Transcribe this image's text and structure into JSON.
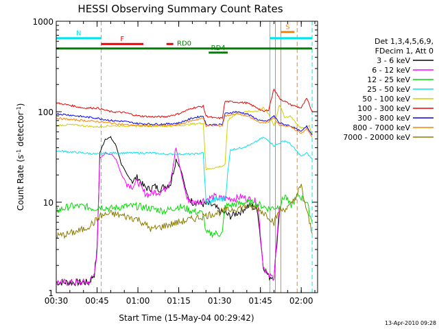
{
  "chart_data": {
    "type": "line",
    "title": "HESSI Observing Summary Count Rates",
    "xlabel": "Start Time (15-May-04 00:29:42)",
    "ylabel_prefix": "Count Rate (s",
    "ylabel_sup1": "-1",
    "ylabel_mid": " detector",
    "ylabel_sup2": "-1",
    "ylabel_suffix": ")",
    "x_unit": "minutes after 00:30 UT",
    "xlim": [
      0,
      96
    ],
    "ylim": [
      1,
      1000
    ],
    "y_scale": "log",
    "x_ticks": [
      {
        "t": 0,
        "label": "00:30"
      },
      {
        "t": 15,
        "label": "00:45"
      },
      {
        "t": 30,
        "label": "01:00"
      },
      {
        "t": 45,
        "label": "01:15"
      },
      {
        "t": 60,
        "label": "01:30"
      },
      {
        "t": 75,
        "label": "01:45"
      },
      {
        "t": 90,
        "label": "02:00"
      }
    ],
    "y_ticks": [
      {
        "v": 1,
        "label": "1"
      },
      {
        "v": 10,
        "label": "10"
      },
      {
        "v": 100,
        "label": "100"
      },
      {
        "v": 1000,
        "label": "1000"
      }
    ],
    "legend": {
      "header1": "Det 1,3,4,5,6,9,",
      "header2": "FDecim 1, Att 0",
      "placement": "right"
    },
    "series": [
      {
        "name": "3 - 6 keV",
        "color": "#000000",
        "points": [
          [
            0,
            1.3
          ],
          [
            12,
            1.3
          ],
          [
            14,
            1.6
          ],
          [
            15,
            3
          ],
          [
            16,
            35
          ],
          [
            18,
            50
          ],
          [
            20,
            52
          ],
          [
            22,
            42
          ],
          [
            24,
            26
          ],
          [
            26,
            20
          ],
          [
            28,
            17
          ],
          [
            30,
            19
          ],
          [
            32,
            15
          ],
          [
            34,
            14
          ],
          [
            36,
            15
          ],
          [
            38,
            14
          ],
          [
            40,
            15
          ],
          [
            42,
            16
          ],
          [
            44,
            30
          ],
          [
            46,
            22
          ],
          [
            48,
            12
          ],
          [
            50,
            10
          ],
          [
            52,
            10
          ],
          [
            54,
            9.5
          ],
          [
            56,
            9.5
          ],
          [
            58,
            9
          ],
          [
            60,
            8
          ],
          [
            62,
            7.5
          ],
          [
            64,
            7
          ],
          [
            66,
            7.5
          ],
          [
            68,
            8
          ],
          [
            70,
            9
          ],
          [
            72,
            9
          ],
          [
            74,
            8
          ],
          [
            76,
            2
          ],
          [
            78,
            1.5
          ],
          [
            80,
            1.5
          ],
          [
            82,
            8
          ]
        ]
      },
      {
        "name": "6 - 12 keV",
        "color": "#ff00ff",
        "points": [
          [
            0,
            1.3
          ],
          [
            12,
            1.3
          ],
          [
            14,
            1.6
          ],
          [
            15,
            3
          ],
          [
            16,
            30
          ],
          [
            18,
            35
          ],
          [
            20,
            34
          ],
          [
            22,
            30
          ],
          [
            24,
            20
          ],
          [
            26,
            16
          ],
          [
            28,
            15
          ],
          [
            30,
            17
          ],
          [
            32,
            13
          ],
          [
            34,
            12
          ],
          [
            36,
            13
          ],
          [
            38,
            13
          ],
          [
            40,
            14
          ],
          [
            42,
            18
          ],
          [
            44,
            40
          ],
          [
            46,
            20
          ],
          [
            48,
            11
          ],
          [
            50,
            10
          ],
          [
            52,
            10
          ],
          [
            54,
            10.5
          ],
          [
            56,
            11
          ],
          [
            58,
            11.5
          ],
          [
            60,
            11
          ],
          [
            62,
            11
          ],
          [
            64,
            11
          ],
          [
            66,
            11
          ],
          [
            68,
            11.5
          ],
          [
            70,
            11
          ],
          [
            72,
            10.5
          ],
          [
            74,
            10
          ],
          [
            76,
            2
          ],
          [
            78,
            1.5
          ],
          [
            80,
            1.5
          ],
          [
            82,
            9
          ]
        ]
      },
      {
        "name": "12 - 25 keV",
        "color": "#00dd00",
        "points": [
          [
            0,
            8
          ],
          [
            5,
            9
          ],
          [
            10,
            9
          ],
          [
            14,
            8.5
          ],
          [
            16,
            9
          ],
          [
            20,
            8.5
          ],
          [
            25,
            9
          ],
          [
            30,
            9
          ],
          [
            35,
            8.5
          ],
          [
            40,
            8
          ],
          [
            45,
            9
          ],
          [
            50,
            8
          ],
          [
            54,
            7.5
          ],
          [
            55,
            4.5
          ],
          [
            58,
            4.5
          ],
          [
            61,
            4.5
          ],
          [
            62,
            9
          ],
          [
            66,
            9.5
          ],
          [
            70,
            10
          ],
          [
            74,
            9.5
          ],
          [
            78,
            8.5
          ],
          [
            82,
            9
          ],
          [
            84,
            12
          ],
          [
            86,
            9
          ],
          [
            89,
            12
          ],
          [
            92,
            10
          ],
          [
            94,
            6
          ]
        ]
      },
      {
        "name": "25 - 50 keV",
        "color": "#00e5ee",
        "points": [
          [
            0,
            37
          ],
          [
            5,
            36
          ],
          [
            10,
            35
          ],
          [
            15,
            34
          ],
          [
            20,
            35
          ],
          [
            25,
            35
          ],
          [
            30,
            35
          ],
          [
            35,
            35
          ],
          [
            40,
            34
          ],
          [
            45,
            34
          ],
          [
            50,
            34
          ],
          [
            54,
            35
          ],
          [
            55,
            10
          ],
          [
            58,
            10.5
          ],
          [
            62,
            11
          ],
          [
            64,
            38
          ],
          [
            68,
            40
          ],
          [
            72,
            44
          ],
          [
            76,
            52
          ],
          [
            78,
            48
          ],
          [
            80,
            42
          ],
          [
            84,
            48
          ],
          [
            86,
            44
          ],
          [
            90,
            32
          ],
          [
            92,
            35
          ],
          [
            94,
            30
          ]
        ]
      },
      {
        "name": "50 - 100 keV",
        "color": "#d0d000",
        "points": [
          [
            0,
            70
          ],
          [
            5,
            72
          ],
          [
            10,
            70
          ],
          [
            15,
            68
          ],
          [
            20,
            70
          ],
          [
            25,
            70
          ],
          [
            30,
            70
          ],
          [
            35,
            70
          ],
          [
            40,
            69
          ],
          [
            45,
            70
          ],
          [
            50,
            73
          ],
          [
            54,
            75
          ],
          [
            55,
            23
          ],
          [
            58,
            24
          ],
          [
            61,
            25
          ],
          [
            62,
            26
          ],
          [
            63,
            80
          ],
          [
            66,
            95
          ],
          [
            70,
            100
          ],
          [
            74,
            102
          ],
          [
            76,
            110
          ],
          [
            78,
            95
          ],
          [
            80,
            70
          ],
          [
            82,
            120
          ],
          [
            84,
            85
          ],
          [
            86,
            90
          ],
          [
            90,
            65
          ],
          [
            93,
            70
          ],
          [
            94,
            55
          ]
        ]
      },
      {
        "name": "100 - 300 keV",
        "color": "#ee0000",
        "points": [
          [
            0,
            125
          ],
          [
            5,
            118
          ],
          [
            10,
            110
          ],
          [
            15,
            110
          ],
          [
            20,
            100
          ],
          [
            25,
            98
          ],
          [
            30,
            90
          ],
          [
            35,
            88
          ],
          [
            40,
            88
          ],
          [
            45,
            95
          ],
          [
            50,
            110
          ],
          [
            54,
            115
          ],
          [
            55,
            90
          ],
          [
            58,
            85
          ],
          [
            61,
            85
          ],
          [
            62,
            130
          ],
          [
            66,
            128
          ],
          [
            70,
            125
          ],
          [
            74,
            110
          ],
          [
            76,
            100
          ],
          [
            78,
            105
          ],
          [
            80,
            180
          ],
          [
            82,
            140
          ],
          [
            84,
            130
          ],
          [
            86,
            120
          ],
          [
            90,
            110
          ],
          [
            92,
            140
          ],
          [
            94,
            100
          ]
        ]
      },
      {
        "name": "300 - 800 keV",
        "color": "#0000ee",
        "points": [
          [
            0,
            95
          ],
          [
            5,
            92
          ],
          [
            10,
            88
          ],
          [
            15,
            85
          ],
          [
            20,
            80
          ],
          [
            25,
            78
          ],
          [
            30,
            74
          ],
          [
            35,
            73
          ],
          [
            40,
            73
          ],
          [
            45,
            75
          ],
          [
            50,
            85
          ],
          [
            54,
            90
          ],
          [
            55,
            72
          ],
          [
            58,
            72
          ],
          [
            61,
            72
          ],
          [
            62,
            95
          ],
          [
            66,
            100
          ],
          [
            70,
            95
          ],
          [
            74,
            82
          ],
          [
            76,
            78
          ],
          [
            78,
            80
          ],
          [
            80,
            90
          ],
          [
            82,
            75
          ],
          [
            84,
            72
          ],
          [
            86,
            70
          ],
          [
            90,
            60
          ],
          [
            92,
            70
          ],
          [
            94,
            55
          ]
        ]
      },
      {
        "name": "800 - 7000 keV",
        "color": "#ff8000",
        "points": [
          [
            0,
            85
          ],
          [
            5,
            82
          ],
          [
            10,
            80
          ],
          [
            15,
            78
          ],
          [
            20,
            75
          ],
          [
            25,
            72
          ],
          [
            30,
            70
          ],
          [
            35,
            70
          ],
          [
            40,
            70
          ],
          [
            45,
            72
          ],
          [
            50,
            80
          ],
          [
            54,
            85
          ],
          [
            55,
            70
          ],
          [
            58,
            70
          ],
          [
            61,
            70
          ],
          [
            62,
            90
          ],
          [
            66,
            95
          ],
          [
            70,
            90
          ],
          [
            74,
            78
          ],
          [
            76,
            75
          ],
          [
            78,
            78
          ],
          [
            80,
            85
          ],
          [
            82,
            72
          ],
          [
            84,
            70
          ],
          [
            86,
            68
          ],
          [
            90,
            58
          ],
          [
            92,
            65
          ],
          [
            94,
            52
          ]
        ]
      },
      {
        "name": "7000 - 20000 keV",
        "color": "#8a7a00",
        "points": [
          [
            0,
            4.2
          ],
          [
            5,
            4.5
          ],
          [
            10,
            5
          ],
          [
            14,
            6
          ],
          [
            16,
            7
          ],
          [
            20,
            7.5
          ],
          [
            25,
            7
          ],
          [
            30,
            6.5
          ],
          [
            35,
            5
          ],
          [
            40,
            5.5
          ],
          [
            45,
            6
          ],
          [
            50,
            6.5
          ],
          [
            54,
            7
          ],
          [
            58,
            7.5
          ],
          [
            62,
            8
          ],
          [
            66,
            8.5
          ],
          [
            70,
            9
          ],
          [
            74,
            8.5
          ],
          [
            78,
            7
          ],
          [
            80,
            6
          ],
          [
            82,
            8
          ],
          [
            84,
            8.5
          ],
          [
            86,
            9
          ],
          [
            90,
            15
          ],
          [
            92,
            8
          ],
          [
            94,
            4.5
          ]
        ]
      }
    ],
    "attenuator_markers": [
      {
        "label": "N",
        "color": "#00e5ee",
        "t0": 0,
        "t1": 16.5,
        "level": 650
      },
      {
        "label": "",
        "color": "#00e5ee",
        "t0": 78.5,
        "t1": 94,
        "level": 650
      },
      {
        "label": "F",
        "color": "#ee0000",
        "t0": 16.5,
        "t1": 32,
        "level": 560
      },
      {
        "label": "",
        "color": "#ee0000",
        "t0": 40.5,
        "t1": 43,
        "level": 560
      },
      {
        "label": "S",
        "color": "#ff8000",
        "t0": 82.5,
        "t1": 87.5,
        "level": 760
      },
      {
        "label": "RD0",
        "color": "#008000",
        "t0": 0,
        "t1": 94,
        "level": 500
      },
      {
        "label": "RD4",
        "color": "#008000",
        "t0": 56,
        "t1": 63,
        "level": 450
      }
    ],
    "vertical_lines": [
      {
        "t": 16.5,
        "color": "#00e5ee",
        "style": "dashed"
      },
      {
        "t": 78.5,
        "color": "#00e5ee",
        "style": "solid"
      },
      {
        "t": 80.5,
        "color": "#ff8000",
        "style": "solid"
      },
      {
        "t": 82.5,
        "color": "#ff8000",
        "style": "solid"
      },
      {
        "t": 88.5,
        "color": "#ff8000",
        "style": "dashed"
      },
      {
        "t": 94,
        "color": "#00e5ee",
        "style": "dashed"
      }
    ],
    "grid": false
  },
  "footer": {
    "timestamp": "13-Apr-2010 09:28"
  }
}
